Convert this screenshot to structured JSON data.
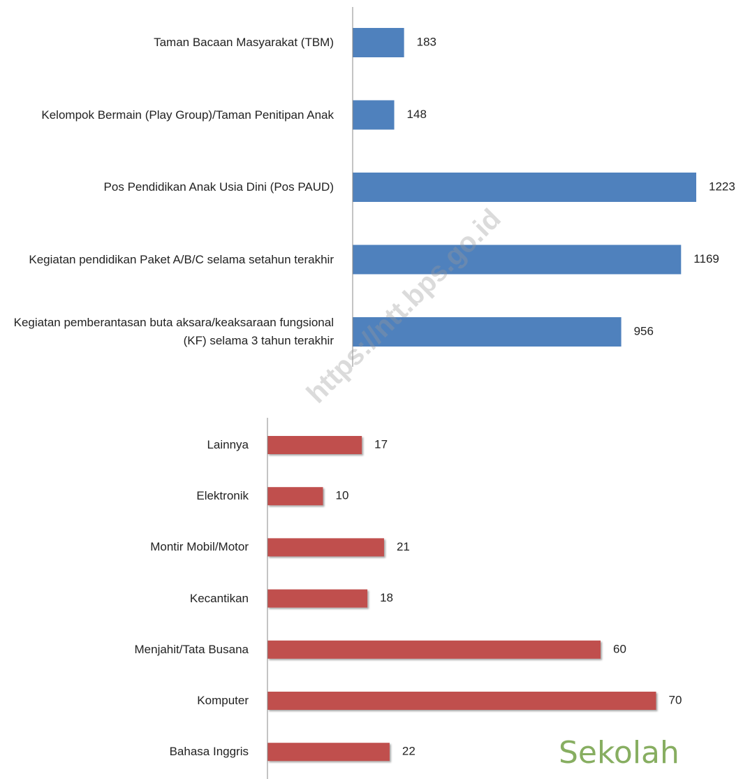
{
  "chart_data": [
    {
      "type": "bar",
      "orientation": "horizontal",
      "color": "#4f81bd",
      "categories": [
        "Taman Bacaan Masyarakat (TBM)",
        "Kelompok Bermain (Play Group)/Taman Penitipan Anak",
        "Pos Pendidikan Anak Usia Dini (Pos PAUD)",
        "Kegiatan pendidikan Paket A/B/C selama setahun terakhir",
        "Kegiatan pemberantasan buta aksara/keaksaraan fungsional (KF) selama 3 tahun terakhir"
      ],
      "values": [
        183,
        148,
        1223,
        1169,
        956
      ],
      "xlim": [
        0,
        1300
      ]
    },
    {
      "type": "bar",
      "orientation": "horizontal",
      "color": "#c0504d",
      "categories": [
        "Lainnya",
        "Elektronik",
        "Montir Mobil/Motor",
        "Kecantikan",
        "Menjahit/Tata Busana",
        "Komputer",
        "Bahasa Inggris"
      ],
      "values": [
        17,
        10,
        21,
        18,
        60,
        70,
        22
      ],
      "xlim": [
        0,
        80
      ]
    }
  ],
  "watermark": "https://ntt.bps.go.id",
  "logo_text": "Sekolah"
}
